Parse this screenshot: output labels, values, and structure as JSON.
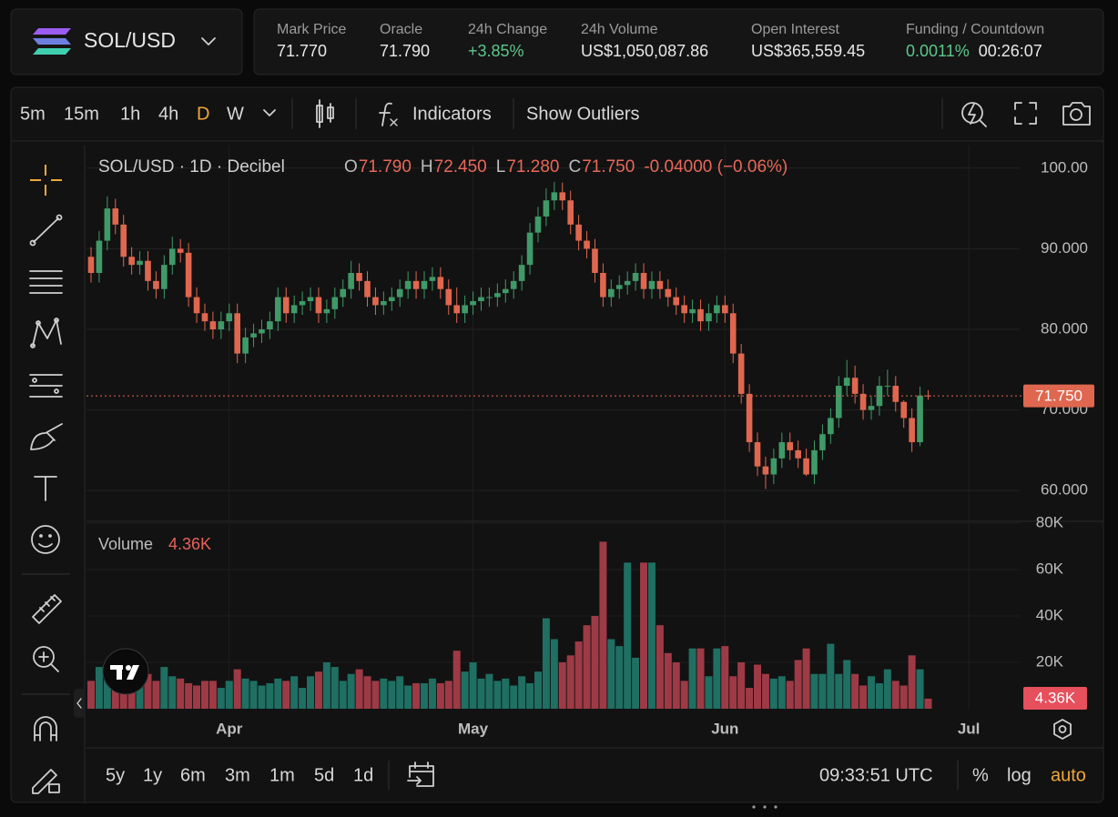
{
  "header": {
    "pair": "SOL/USD",
    "stats": [
      {
        "label": "Mark Price",
        "value": "71.770"
      },
      {
        "label": "Oracle",
        "value": "71.790"
      },
      {
        "label": "24h Change",
        "value": "+3.85%"
      },
      {
        "label": "24h Volume",
        "value": "US$1,050,087.86"
      },
      {
        "label": "Open Interest",
        "value": "US$365,559.45"
      },
      {
        "label": "Funding / Countdown",
        "value": "0.0011%",
        "extra": "00:26:07"
      }
    ]
  },
  "toolbar": {
    "intervals": [
      "5m",
      "15m",
      "1h",
      "4h",
      "D",
      "W"
    ],
    "indicators": "Indicators",
    "outliers": "Show Outliers"
  },
  "chart_data": {
    "type": "candlestick",
    "title": "SOL/USD · 1D · Decibel",
    "legend": [
      {
        "key": "O",
        "value": "71.790"
      },
      {
        "key": "H",
        "value": "72.450"
      },
      {
        "key": "L",
        "value": "71.280"
      },
      {
        "key": "C",
        "value": "71.750"
      }
    ],
    "change": "-0.04000 (−0.06%)",
    "last_label": "71.750",
    "up_color": "#3f9a68",
    "down_color": "#e0674f",
    "open": [
      89,
      87,
      91,
      95,
      93,
      89,
      88,
      88.5,
      86,
      85,
      88,
      90,
      89.5,
      84,
      82,
      81,
      80,
      81,
      82,
      77,
      79,
      79.5,
      80,
      81,
      84,
      82,
      83,
      83.5,
      84,
      82,
      82.5,
      84,
      85,
      87,
      86,
      84,
      83,
      83.5,
      84,
      85,
      86,
      85,
      86,
      86.5,
      85,
      83,
      82,
      83,
      83.5,
      84,
      84,
      84.5,
      85,
      86,
      88,
      92,
      94,
      96,
      97,
      96,
      93,
      91,
      90,
      87,
      84,
      85,
      85.5,
      86,
      87,
      85,
      86,
      85,
      84,
      83,
      82,
      82.5,
      81,
      82,
      83,
      82,
      77,
      72,
      66,
      63,
      62,
      64,
      66,
      65,
      64,
      62,
      65,
      67,
      69,
      73,
      74,
      72,
      70,
      70.5,
      73,
      73,
      71,
      69,
      66,
      71.79
    ],
    "high": [
      90.2,
      92.2,
      96.5,
      96.2,
      94.2,
      90.2,
      89.7,
      89.7,
      87.2,
      89.2,
      91.5,
      91.2,
      90.7,
      85.2,
      83.2,
      82.2,
      82.2,
      83.2,
      83.2,
      80.2,
      80.7,
      81.2,
      82.2,
      85.2,
      85.2,
      84.2,
      84.7,
      85.2,
      85.2,
      83.7,
      85.2,
      86.2,
      88.5,
      88.2,
      87.2,
      85.2,
      84.7,
      85.2,
      86.2,
      87.2,
      87.2,
      87.2,
      87.7,
      87.7,
      86.2,
      85.2,
      84.2,
      84.7,
      85.2,
      85.2,
      85.7,
      86.2,
      87.2,
      89.2,
      93.2,
      95.2,
      97.5,
      98.3,
      98.2,
      97.2,
      94.2,
      92.2,
      91.2,
      88.2,
      86.2,
      86.7,
      87.2,
      88.2,
      88.2,
      87.2,
      87.2,
      86.2,
      85.2,
      84.2,
      83.7,
      83.7,
      83.2,
      84.2,
      84.2,
      83.2,
      78.2,
      73.2,
      67.2,
      64.2,
      65.2,
      67.2,
      67.2,
      66.2,
      65.2,
      66.2,
      68.2,
      70.2,
      74.2,
      76.2,
      75.5,
      73.2,
      71.7,
      74.2,
      75,
      74.2,
      71.2,
      70.2,
      72.9,
      72.45
    ],
    "low": [
      85.8,
      85.8,
      89.8,
      91.8,
      87.8,
      86.8,
      86.8,
      84.8,
      83.8,
      83.8,
      86.8,
      88.3,
      82.8,
      80.8,
      79.8,
      78.8,
      78.8,
      79.8,
      75.8,
      75.8,
      77.8,
      78.3,
      78.8,
      79.8,
      80.8,
      80.8,
      81.8,
      82.3,
      80.8,
      80.8,
      81.3,
      82.8,
      83.8,
      84.8,
      82.8,
      81.8,
      81.8,
      82.3,
      82.8,
      83.8,
      83.8,
      83.8,
      84.8,
      83.8,
      81.8,
      80.8,
      80.8,
      81.8,
      82.3,
      82.8,
      82.8,
      83.3,
      83.8,
      84.8,
      86.8,
      90.8,
      92.8,
      94.8,
      94.8,
      91.8,
      89.8,
      88.8,
      85.8,
      82.8,
      82.8,
      83.8,
      84.3,
      84.8,
      83.8,
      83.8,
      83.8,
      82.8,
      81.8,
      80.8,
      80.8,
      79.8,
      79.8,
      80.8,
      80.8,
      75.8,
      70.8,
      64.8,
      61.8,
      60.2,
      60.8,
      62.8,
      63.8,
      62.8,
      61.8,
      60.8,
      63.8,
      65.8,
      67.8,
      71.8,
      70.8,
      68.8,
      68.8,
      69.3,
      71.8,
      69.8,
      67.8,
      64.8,
      65.5,
      71.28
    ],
    "close": [
      87,
      91,
      95,
      93,
      89,
      88,
      88.5,
      86,
      85,
      88,
      90,
      89.5,
      84,
      82,
      81,
      80,
      81,
      82,
      77,
      79,
      79.5,
      80,
      81,
      84,
      82,
      83,
      83.5,
      84,
      82,
      82.5,
      84,
      85,
      87,
      86,
      84,
      83,
      83.5,
      84,
      85,
      86,
      85,
      86,
      86.5,
      85,
      83,
      82,
      83,
      83.5,
      84,
      84,
      84.5,
      85,
      86,
      88,
      92,
      94,
      96,
      97,
      96,
      93,
      91,
      90,
      87,
      84,
      85,
      85.5,
      86,
      87,
      85,
      86,
      85,
      84,
      83,
      82,
      82.5,
      81,
      82,
      83,
      82,
      77,
      72,
      66,
      63,
      62,
      64,
      66,
      65,
      64,
      62,
      65,
      67,
      69,
      73,
      74,
      72,
      70,
      70.5,
      73,
      73,
      71,
      69,
      66,
      71.79,
      71.75
    ],
    "ylim": [
      56.3,
      102.8
    ],
    "yticks": [
      {
        "value": 60,
        "label": "60.000"
      },
      {
        "value": 70,
        "label": "70.000"
      },
      {
        "value": 80,
        "label": "80.000"
      },
      {
        "value": 90,
        "label": "90.000"
      },
      {
        "value": 100,
        "label": "100.00"
      }
    ],
    "xlim": [
      -0.56,
      113.7
    ],
    "xticks": [
      {
        "value": 17,
        "label": "Apr"
      },
      {
        "value": 47,
        "label": "May"
      },
      {
        "value": 78,
        "label": "Jun"
      },
      {
        "value": 108,
        "label": "Jul"
      }
    ],
    "grid": true,
    "volume": {
      "name": "Volume",
      "label": "4.36K",
      "up_color": "#1f6f63",
      "down_color": "#9e3a45",
      "values": [
        12000,
        18000,
        14000,
        15000,
        24000,
        13000,
        20000,
        15000,
        12000,
        18000,
        14000,
        13000,
        11000,
        10000,
        12000,
        12000,
        9000,
        12000,
        17000,
        13000,
        12000,
        10000,
        11000,
        13000,
        12000,
        14000,
        9000,
        14000,
        16000,
        20000,
        18000,
        12000,
        15000,
        17000,
        14000,
        12000,
        13000,
        12000,
        14000,
        10000,
        11000,
        11000,
        13000,
        11000,
        12000,
        25000,
        16000,
        20000,
        13000,
        15000,
        12000,
        13000,
        10000,
        14000,
        11000,
        16000,
        39000,
        30000,
        20000,
        23000,
        29000,
        36000,
        40000,
        72000,
        30000,
        27000,
        63000,
        22000,
        63000,
        63000,
        36000,
        24000,
        20000,
        12000,
        26000,
        26000,
        14000,
        26000,
        27000,
        14000,
        20000,
        9000,
        19000,
        15000,
        13000,
        14000,
        12000,
        21000,
        26000,
        15000,
        15000,
        28000,
        15000,
        21000,
        15000,
        10000,
        14000,
        11000,
        17000,
        12000,
        10000,
        23000,
        17000,
        4360
      ],
      "ylim": [
        0,
        80000
      ],
      "yticks": [
        {
          "value": 20000,
          "label": "20K"
        },
        {
          "value": 40000,
          "label": "40K"
        },
        {
          "value": 60000,
          "label": "60K"
        },
        {
          "value": 80000,
          "label": "80K"
        }
      ]
    }
  },
  "footer": {
    "ranges": [
      "5y",
      "1y",
      "6m",
      "3m",
      "1m",
      "5d",
      "1d"
    ],
    "time": "09:33:51 UTC",
    "percent": "%",
    "log": "log",
    "auto": "auto"
  }
}
